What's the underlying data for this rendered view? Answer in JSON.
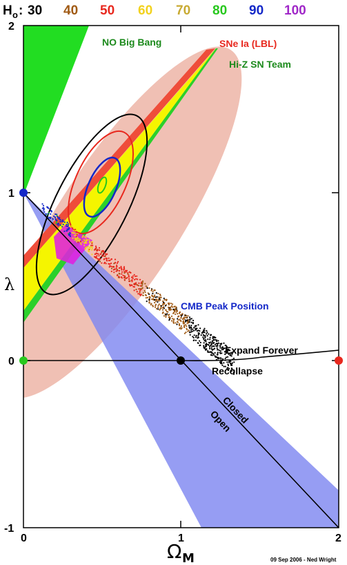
{
  "chart_data": {
    "type": "scatter",
    "xlabel": "Ω",
    "xlabel_sub": "M",
    "ylabel": "λ",
    "xlim": [
      0,
      2
    ],
    "ylim": [
      -1,
      2
    ],
    "xticks": [
      "0",
      "1",
      "2"
    ],
    "yticks": [
      "-1",
      "0",
      "1",
      "2"
    ],
    "hubble_legend": {
      "prefix": "H",
      "prefix_sub": "o",
      "colon": ":",
      "entries": [
        {
          "label": "30",
          "color": "#000000"
        },
        {
          "label": "40",
          "color": "#a05a14"
        },
        {
          "label": "50",
          "color": "#e8281e"
        },
        {
          "label": "60",
          "color": "#f2d21e"
        },
        {
          "label": "70",
          "color": "#c8aa32"
        },
        {
          "label": "80",
          "color": "#28c81e"
        },
        {
          "label": "90",
          "color": "#1428c8"
        },
        {
          "label": "100",
          "color": "#a028c8"
        }
      ]
    },
    "annotations": {
      "no_big_bang": "NO Big Bang",
      "sne_lbl": "SNe Ia (LBL)",
      "hiz_team": "Hi-Z SN Team",
      "cmb": "CMB Peak Position",
      "expand": "Expand Forever",
      "recollapse": "Recollapse",
      "closed": "Closed",
      "open": "Open"
    },
    "points": [
      {
        "x": 0,
        "y": 1,
        "color": "#1428c8"
      },
      {
        "x": 0,
        "y": 0,
        "color": "#28c81e"
      },
      {
        "x": 1,
        "y": 0,
        "color": "#000000"
      },
      {
        "x": 2,
        "y": 0,
        "color": "#e8281e"
      }
    ],
    "credit": "09 Sep 2006 - Ned Wright",
    "colors": {
      "no_big_bang": "#22dd22",
      "cmb_band": "#7f87f0",
      "sne_ellipse": "#f0c0b4",
      "band_red": "#ef4d3a",
      "band_yellow": "#f5f500",
      "band_green": "#2bd02b",
      "magenta": "#e020e0",
      "contour_black": "#000000",
      "contour_red": "#e8281e",
      "contour_blue": "#1428c8",
      "contour_green": "#28c81e"
    }
  }
}
